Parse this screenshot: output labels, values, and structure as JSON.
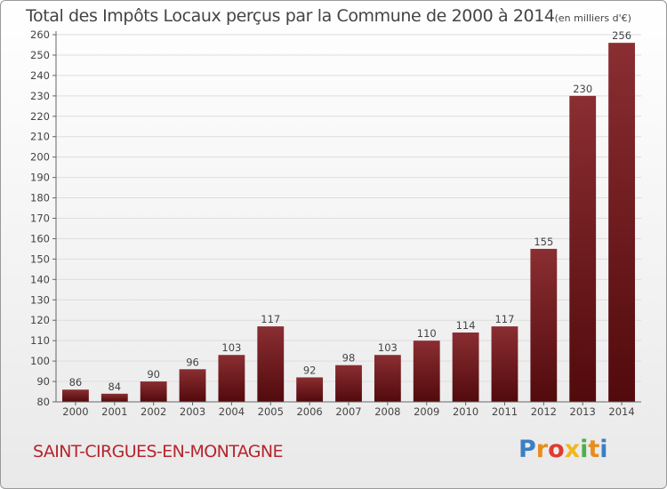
{
  "title": "Total des Impôts Locaux perçus par la Commune de 2000 à 2014",
  "subtitle": "(en milliers d'€)",
  "commune": "SAINT-CIRGUES-EN-MONTAGNE",
  "brand": {
    "name": "Proxiti",
    "letters": [
      "P",
      "r",
      "o",
      "x",
      "i",
      "t",
      "i"
    ]
  },
  "colors": {
    "bar_top": "#8a2e32",
    "bar_bottom": "#520a0c",
    "commune_text": "#b5252d"
  },
  "chart_data": {
    "type": "bar",
    "title": "Total des Impôts Locaux perçus par la Commune de 2000 à 2014",
    "xlabel": "",
    "ylabel": "",
    "categories": [
      "2000",
      "2001",
      "2002",
      "2003",
      "2004",
      "2005",
      "2006",
      "2007",
      "2008",
      "2009",
      "2010",
      "2011",
      "2012",
      "2013",
      "2014"
    ],
    "values": [
      86,
      84,
      90,
      96,
      103,
      117,
      92,
      98,
      103,
      110,
      114,
      117,
      155,
      230,
      256
    ],
    "ylim": [
      80,
      260
    ],
    "ytick_step": 10,
    "grid": true
  }
}
